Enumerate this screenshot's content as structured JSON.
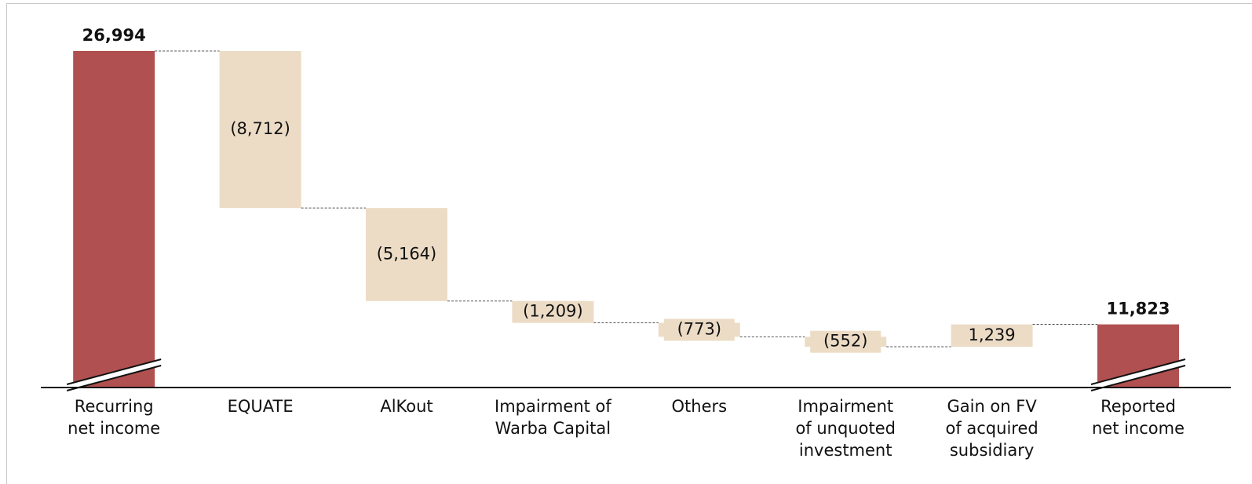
{
  "chart_data": {
    "type": "waterfall",
    "categories": [
      [
        "Recurring",
        "net income"
      ],
      [
        "EQUATE"
      ],
      [
        "AlKout"
      ],
      [
        "Impairment of",
        "Warba Capital"
      ],
      [
        "Others"
      ],
      [
        "Impairment",
        "of unquoted",
        "investment"
      ],
      [
        "Gain on FV",
        "of acquired",
        "subsidiary"
      ],
      [
        "Reported",
        "net income"
      ]
    ],
    "values": [
      26994,
      -8712,
      -5164,
      -1209,
      -773,
      -552,
      1239,
      11823
    ],
    "value_labels": [
      "26,994",
      "(8,712)",
      "(5,164)",
      "(1,209)",
      "(773)",
      "(552)",
      "1,239",
      "11,823"
    ],
    "totals": [
      true,
      false,
      false,
      false,
      false,
      false,
      false,
      true
    ],
    "total_color": "#b05050",
    "delta_color": "#ecdcc6"
  }
}
